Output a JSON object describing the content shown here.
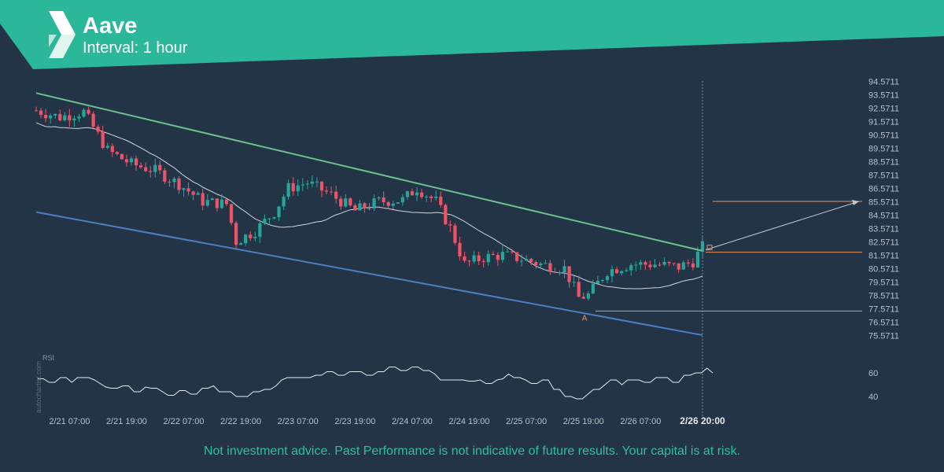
{
  "header": {
    "title": "Aave",
    "subtitle": "Interval: 1 hour",
    "accent_color": "#2bb89a",
    "logo_icon": "autochartist-logo-icon"
  },
  "disclaimer": "Not investment advice. Past Performance is not indicative of future results. Your capital is at risk.",
  "watermark": "autochartist.com",
  "chart_data": [
    {
      "type": "candlestick",
      "title": "",
      "y_axis_side": "right",
      "ylim": [
        75.5711,
        95.0
      ],
      "y_ticks": [
        "94.5711",
        "93.5711",
        "92.5711",
        "91.5711",
        "90.5711",
        "89.5711",
        "88.5711",
        "87.5711",
        "86.5711",
        "85.5711",
        "84.5711",
        "83.5711",
        "82.5711",
        "81.5711",
        "80.5711",
        "79.5711",
        "78.5711",
        "77.5711",
        "76.5711",
        "75.5711"
      ],
      "x_ticks": [
        "2/21 07:00",
        "2/21 19:00",
        "2/22 07:00",
        "2/22 19:00",
        "2/23 07:00",
        "2/23 19:00",
        "2/24 07:00",
        "2/24 19:00",
        "2/25 07:00",
        "2/25 19:00",
        "2/26 07:00",
        "2/26 20:00"
      ],
      "colors": {
        "up": "#26a69a",
        "down": "#ef5366",
        "resistance": "#6dbf8b",
        "support": "#4a7fc1",
        "moving_average": "#cfd6dd",
        "levels": "#e8915f",
        "forecast": "#c0c7cf"
      },
      "close_series": [
        {
          "t": "2/21 00:00",
          "c": 92.4
        },
        {
          "t": "2/21 05:00",
          "c": 91.9
        },
        {
          "t": "2/21 10:00",
          "c": 92.3
        },
        {
          "t": "2/21 15:00",
          "c": 89.4
        },
        {
          "t": "2/21 20:00",
          "c": 88.4
        },
        {
          "t": "2/22 01:00",
          "c": 87.9
        },
        {
          "t": "2/22 06:00",
          "c": 86.9
        },
        {
          "t": "2/22 11:00",
          "c": 85.6
        },
        {
          "t": "2/22 16:00",
          "c": 85.4
        },
        {
          "t": "2/22 18:00",
          "c": 82.6
        },
        {
          "t": "2/22 22:00",
          "c": 83.4
        },
        {
          "t": "2/23 02:00",
          "c": 84.8
        },
        {
          "t": "2/23 05:00",
          "c": 86.6
        },
        {
          "t": "2/23 09:00",
          "c": 87.0
        },
        {
          "t": "2/23 14:00",
          "c": 86.1
        },
        {
          "t": "2/23 19:00",
          "c": 84.9
        },
        {
          "t": "2/24 00:00",
          "c": 85.6
        },
        {
          "t": "2/24 05:00",
          "c": 85.7
        },
        {
          "t": "2/24 08:00",
          "c": 86.6
        },
        {
          "t": "2/24 12:00",
          "c": 85.6
        },
        {
          "t": "2/24 15:00",
          "c": 83.6
        },
        {
          "t": "2/24 18:00",
          "c": 80.9
        },
        {
          "t": "2/24 22:00",
          "c": 81.4
        },
        {
          "t": "2/25 02:00",
          "c": 81.6
        },
        {
          "t": "2/25 06:00",
          "c": 81.3
        },
        {
          "t": "2/25 10:00",
          "c": 80.9
        },
        {
          "t": "2/25 15:00",
          "c": 80.6
        },
        {
          "t": "2/25 18:00",
          "c": 78.4
        },
        {
          "t": "2/25 20:00",
          "c": 78.6
        },
        {
          "t": "2/26 00:00",
          "c": 80.4
        },
        {
          "t": "2/26 05:00",
          "c": 80.9
        },
        {
          "t": "2/26 10:00",
          "c": 80.9
        },
        {
          "t": "2/26 15:00",
          "c": 80.7
        },
        {
          "t": "2/26 18:00",
          "c": 81.1
        },
        {
          "t": "2/26 20:00",
          "c": 82.2
        }
      ],
      "pattern": {
        "resistance_line": {
          "from": {
            "t": "2/21 00:00",
            "y": 93.7
          },
          "to": {
            "t": "2/26 20:00",
            "y": 81.9
          }
        },
        "support_line": {
          "from": {
            "t": "2/21 00:00",
            "y": 84.8
          },
          "to": {
            "t": "2/26 20:00",
            "y": 75.6
          }
        },
        "point_label": "A",
        "point": {
          "t": "2/25 18:00",
          "y": 77.4
        },
        "target_level": 85.6,
        "breakout_level": 81.8,
        "low_level": 77.4
      }
    },
    {
      "type": "line",
      "title": "RSI",
      "ylabel": "RSI",
      "y_ticks": [
        "60",
        "40"
      ],
      "ylim": [
        30,
        80
      ],
      "series": [
        {
          "values": [
            55,
            55,
            52,
            52,
            56,
            56,
            52,
            56,
            56,
            56,
            54,
            51,
            48,
            47,
            47,
            49,
            49,
            44,
            44,
            48,
            47,
            47,
            44,
            41,
            41,
            45,
            45,
            42,
            42,
            47,
            47,
            49,
            44,
            44,
            44,
            40,
            40,
            40,
            44,
            44,
            46,
            46,
            49,
            54,
            56,
            56,
            56,
            56,
            56,
            58,
            58,
            61,
            61,
            58,
            58,
            61,
            61,
            61,
            58,
            58,
            61,
            61,
            65,
            65,
            62,
            62,
            65,
            65,
            62,
            62,
            59,
            54,
            54,
            54,
            54,
            54,
            53,
            53,
            54,
            51,
            51,
            54,
            55,
            59,
            56,
            56,
            54,
            51,
            51,
            54,
            54,
            46,
            46,
            40,
            40,
            38,
            38,
            42,
            46,
            46,
            50,
            54,
            54,
            50,
            54,
            54,
            54,
            52,
            52,
            56,
            56,
            56,
            52,
            52,
            58,
            58,
            60,
            60,
            64,
            60
          ]
        }
      ]
    }
  ]
}
